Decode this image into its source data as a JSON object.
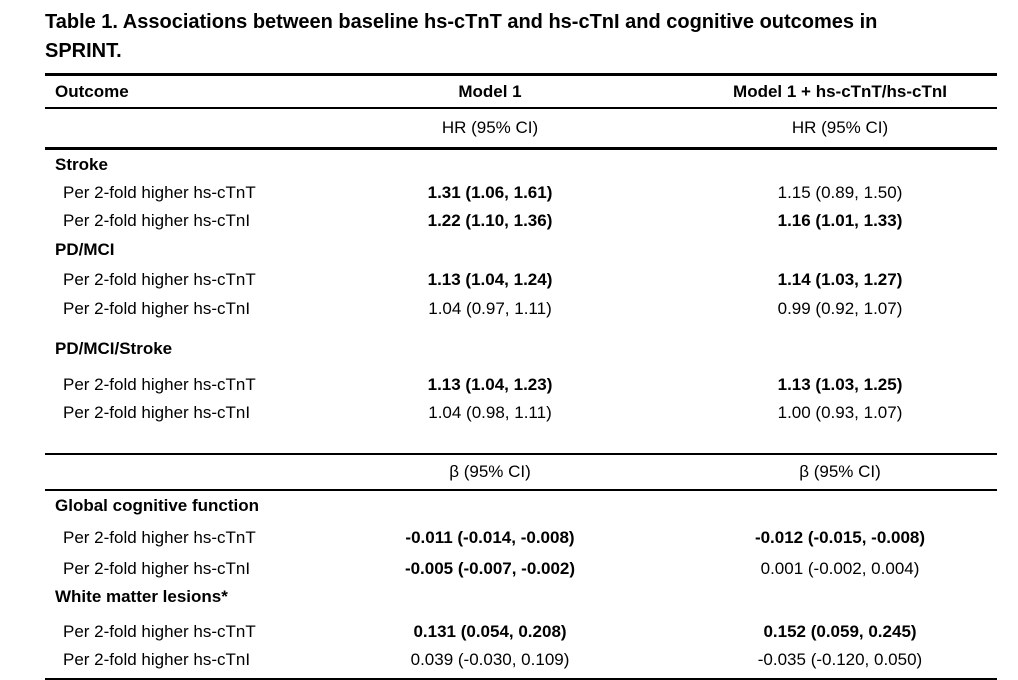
{
  "title": "Table 1. Associations between baseline hs-cTnT and hs-cTnI and cognitive outcomes in SPRINT.",
  "header": {
    "outcome": "Outcome",
    "model1": "Model 1",
    "model1_plus": "Model 1 + hs-cTnT/hs-cTnI"
  },
  "hr_subheader": {
    "model1": "HR (95% CI)",
    "model1_plus": "HR (95% CI)"
  },
  "beta_subheader": {
    "model1": "β (95% CI)",
    "model1_plus": "β (95% CI)"
  },
  "hr_section": {
    "groups": [
      {
        "name": "Stroke",
        "rows": [
          {
            "label": "Per 2-fold higher hs-cTnT",
            "model1": "1.31 (1.06, 1.61)",
            "model1_significant": true,
            "model1_plus": "1.15 (0.89, 1.50)",
            "model1_plus_significant": false
          },
          {
            "label": "Per 2-fold higher hs-cTnI",
            "model1": "1.22 (1.10, 1.36)",
            "model1_significant": true,
            "model1_plus": "1.16 (1.01, 1.33)",
            "model1_plus_significant": true
          }
        ]
      },
      {
        "name": "PD/MCI",
        "rows": [
          {
            "label": "Per 2-fold higher hs-cTnT",
            "model1": "1.13 (1.04, 1.24)",
            "model1_significant": true,
            "model1_plus": "1.14 (1.03, 1.27)",
            "model1_plus_significant": true
          },
          {
            "label": "Per 2-fold higher hs-cTnI",
            "model1": "1.04 (0.97, 1.11)",
            "model1_significant": false,
            "model1_plus": "0.99 (0.92, 1.07)",
            "model1_plus_significant": false
          }
        ]
      },
      {
        "name": "PD/MCI/Stroke",
        "rows": [
          {
            "label": "Per 2-fold higher hs-cTnT",
            "model1": "1.13 (1.04, 1.23)",
            "model1_significant": true,
            "model1_plus": "1.13 (1.03, 1.25)",
            "model1_plus_significant": true
          },
          {
            "label": "Per 2-fold higher hs-cTnI",
            "model1": "1.04 (0.98, 1.11)",
            "model1_significant": false,
            "model1_plus": "1.00 (0.93, 1.07)",
            "model1_plus_significant": false
          }
        ]
      }
    ]
  },
  "beta_section": {
    "groups": [
      {
        "name": "Global cognitive function",
        "rows": [
          {
            "label": "Per 2-fold higher hs-cTnT",
            "model1": "-0.011 (-0.014, -0.008)",
            "model1_significant": true,
            "model1_plus": "-0.012 (-0.015, -0.008)",
            "model1_plus_significant": true
          },
          {
            "label": "Per 2-fold higher hs-cTnI",
            "model1": "-0.005 (-0.007, -0.002)",
            "model1_significant": true,
            "model1_plus": "0.001 (-0.002, 0.004)",
            "model1_plus_significant": false
          }
        ]
      },
      {
        "name": "White matter lesions*",
        "rows": [
          {
            "label": "Per 2-fold higher hs-cTnT",
            "model1": "0.131 (0.054, 0.208)",
            "model1_significant": true,
            "model1_plus": "0.152 (0.059, 0.245)",
            "model1_plus_significant": true
          },
          {
            "label": "Per 2-fold higher hs-cTnI",
            "model1": "0.039 (-0.030, 0.109)",
            "model1_significant": false,
            "model1_plus": "-0.035 (-0.120, 0.050)",
            "model1_plus_significant": false
          }
        ]
      }
    ]
  }
}
